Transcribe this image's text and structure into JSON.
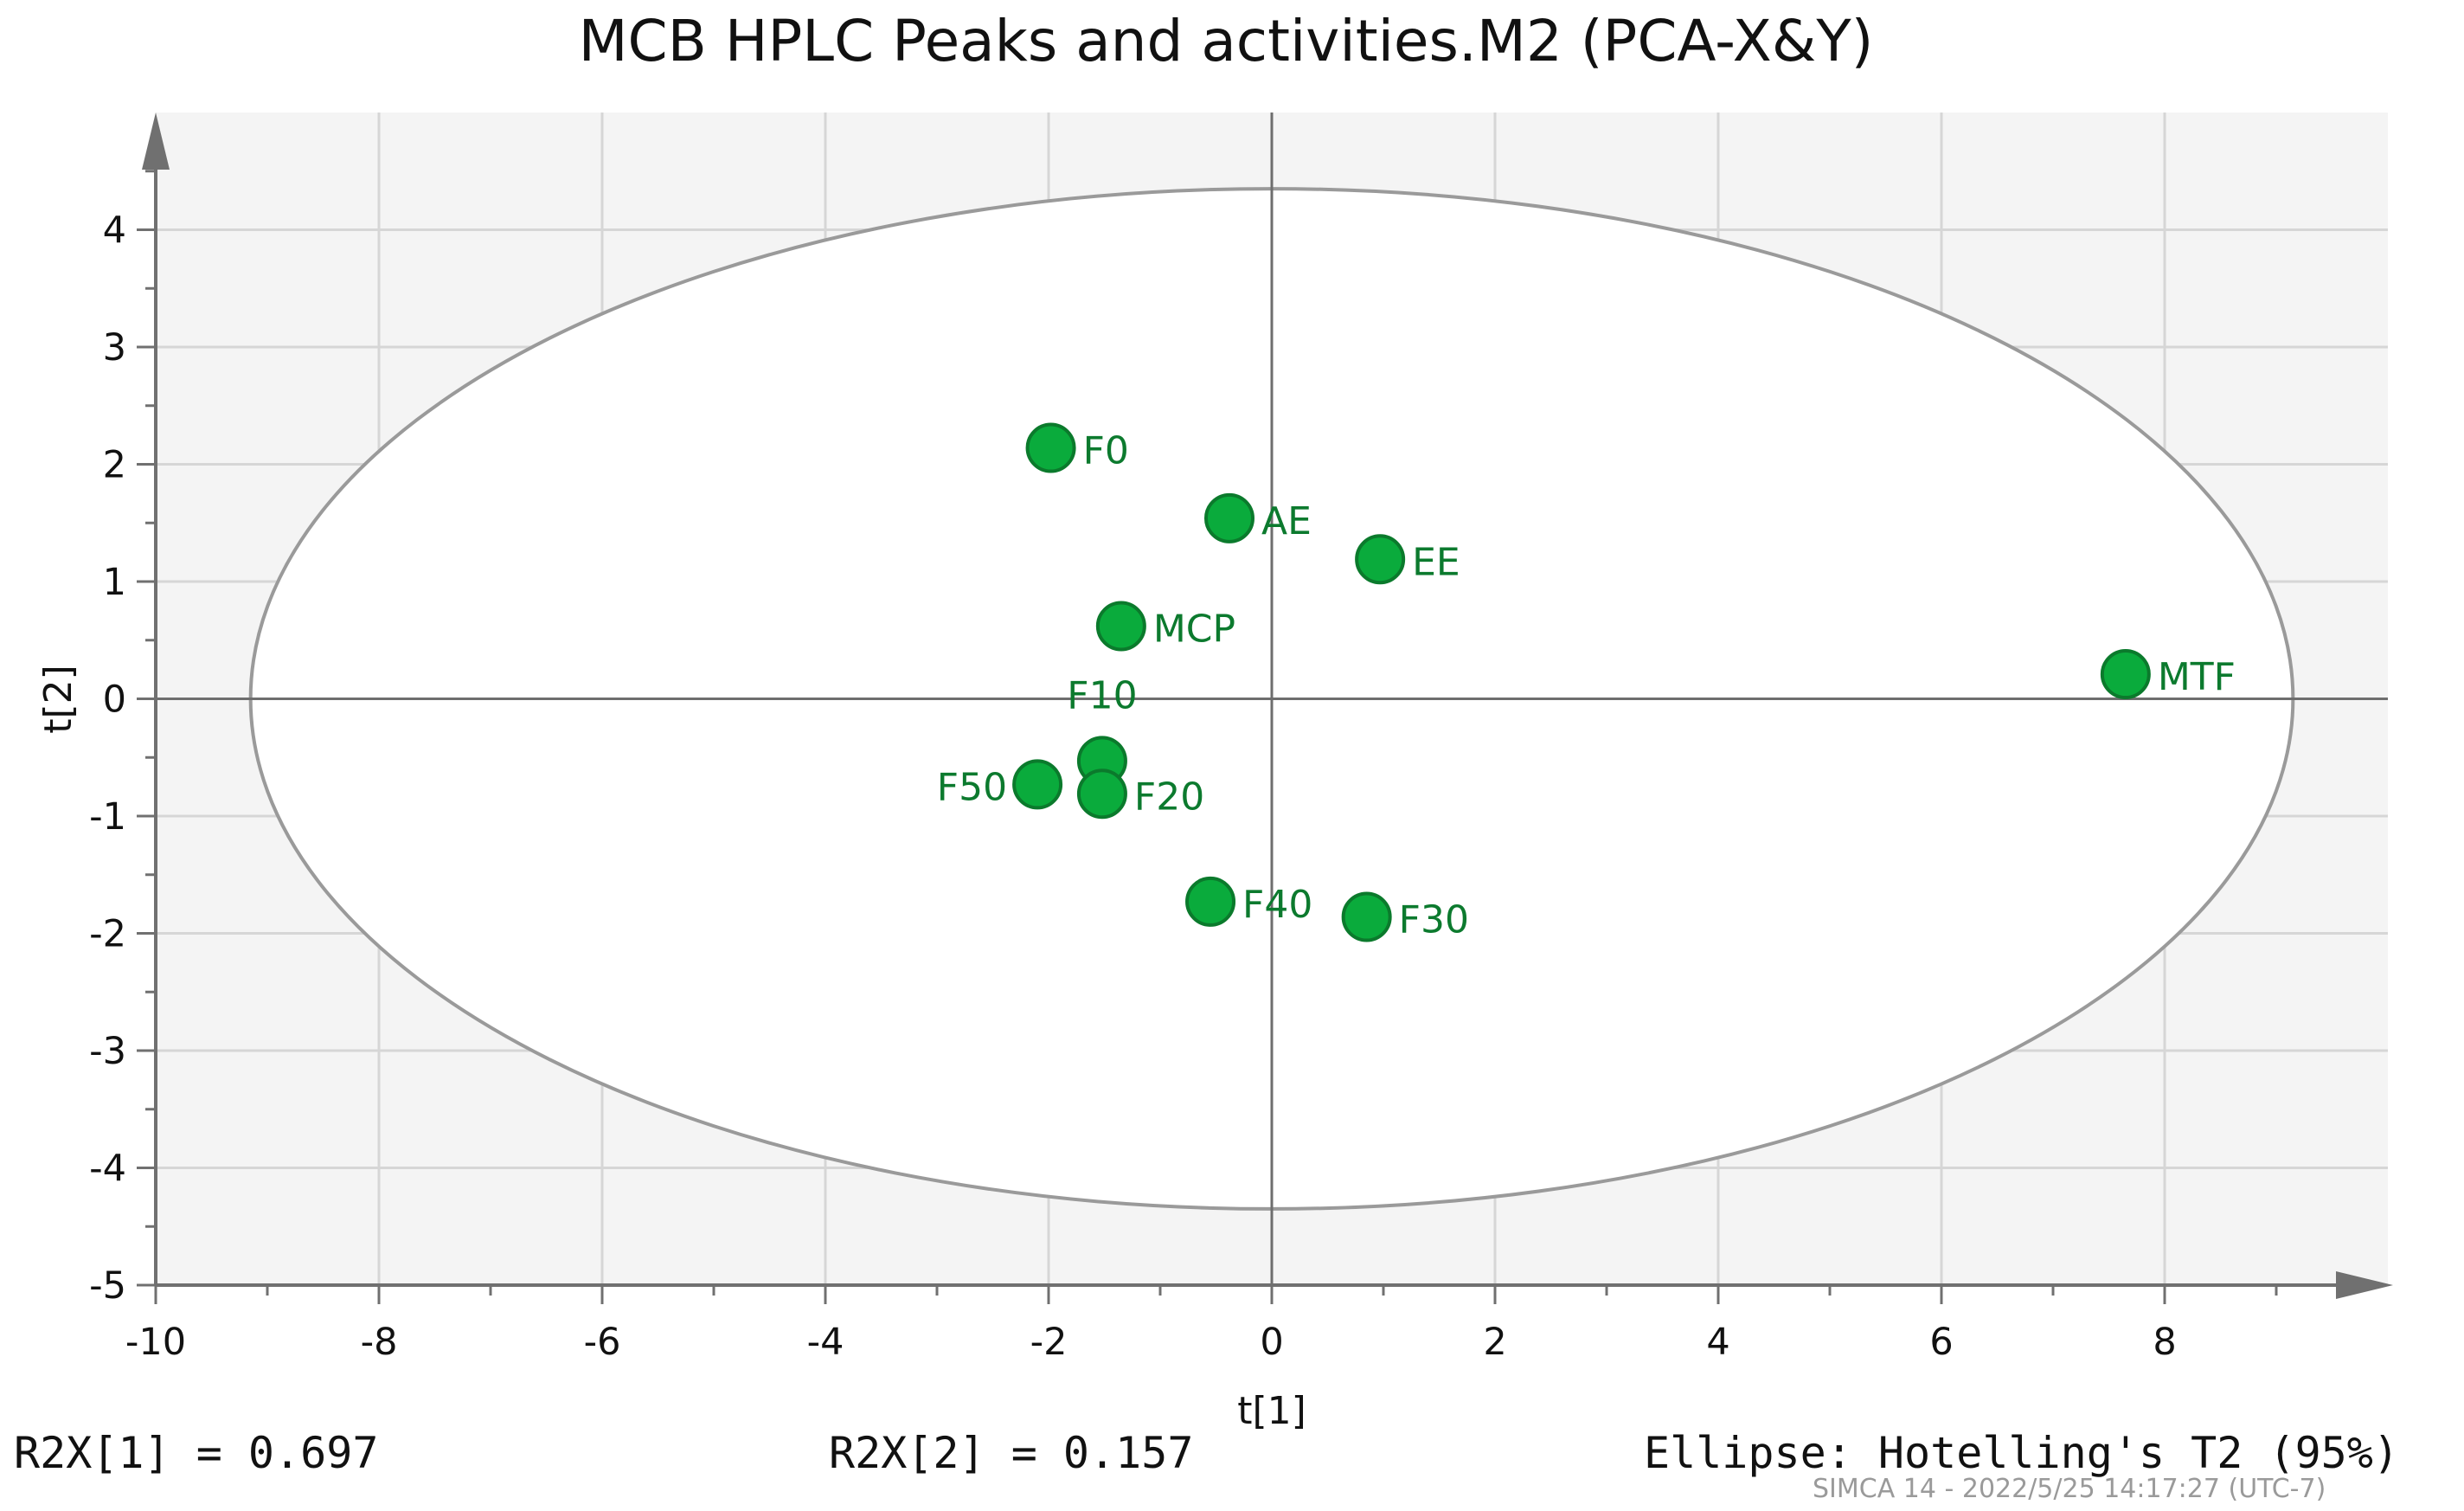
{
  "chart_data": {
    "type": "scatter",
    "title": "MCB HPLC Peaks and activities.M2 (PCA-X&Y)",
    "xlabel": "t[1]",
    "ylabel": "t[2]",
    "xlim": [
      -10,
      10
    ],
    "ylim": [
      -5,
      5
    ],
    "x_ticks": [
      -10,
      -8,
      -6,
      -4,
      -2,
      0,
      2,
      4,
      6,
      8
    ],
    "y_ticks": [
      4,
      3,
      2,
      1,
      0,
      -1,
      -2,
      -3,
      -4,
      -5
    ],
    "grid": true,
    "colors": {
      "point_fill": "#0aab3c",
      "point_stroke": "#0b7a2c",
      "label": "#0c7a2e",
      "plot_bg": "#f4f4f4",
      "ellipse": "#9a9a9a",
      "grid": "#d6d6d6",
      "axis": "#707070"
    },
    "ellipse": {
      "label": "Hotelling's T2 (95%)",
      "rx": 9.15,
      "ry": 4.35,
      "cx": 0,
      "cy": 0
    },
    "points": [
      {
        "label": "F0",
        "x": -1.98,
        "y": 2.14,
        "label_side": "right"
      },
      {
        "label": "AE",
        "x": -0.38,
        "y": 1.54,
        "label_side": "right"
      },
      {
        "label": "EE",
        "x": 0.97,
        "y": 1.19,
        "label_side": "right"
      },
      {
        "label": "MCP",
        "x": -1.35,
        "y": 0.62,
        "label_side": "right"
      },
      {
        "label": "MTF",
        "x": 7.65,
        "y": 0.21,
        "label_side": "right"
      },
      {
        "label": "F10",
        "x": -1.52,
        "y": -0.53,
        "label_side": "top"
      },
      {
        "label": "F50",
        "x": -2.1,
        "y": -0.73,
        "label_side": "left"
      },
      {
        "label": "F20",
        "x": -1.52,
        "y": -0.81,
        "label_side": "right"
      },
      {
        "label": "F40",
        "x": -0.55,
        "y": -1.73,
        "label_side": "right"
      },
      {
        "label": "F30",
        "x": 0.85,
        "y": -1.86,
        "label_side": "right"
      }
    ]
  },
  "footer": {
    "r2x1": "R2X[1] = 0.697",
    "r2x2": "R2X[2] = 0.157",
    "ellipse_note": "Ellipse: Hotelling's T2 (95%)",
    "stamp": "SIMCA 14 - 2022/5/25 14:17:27 (UTC-7)"
  }
}
